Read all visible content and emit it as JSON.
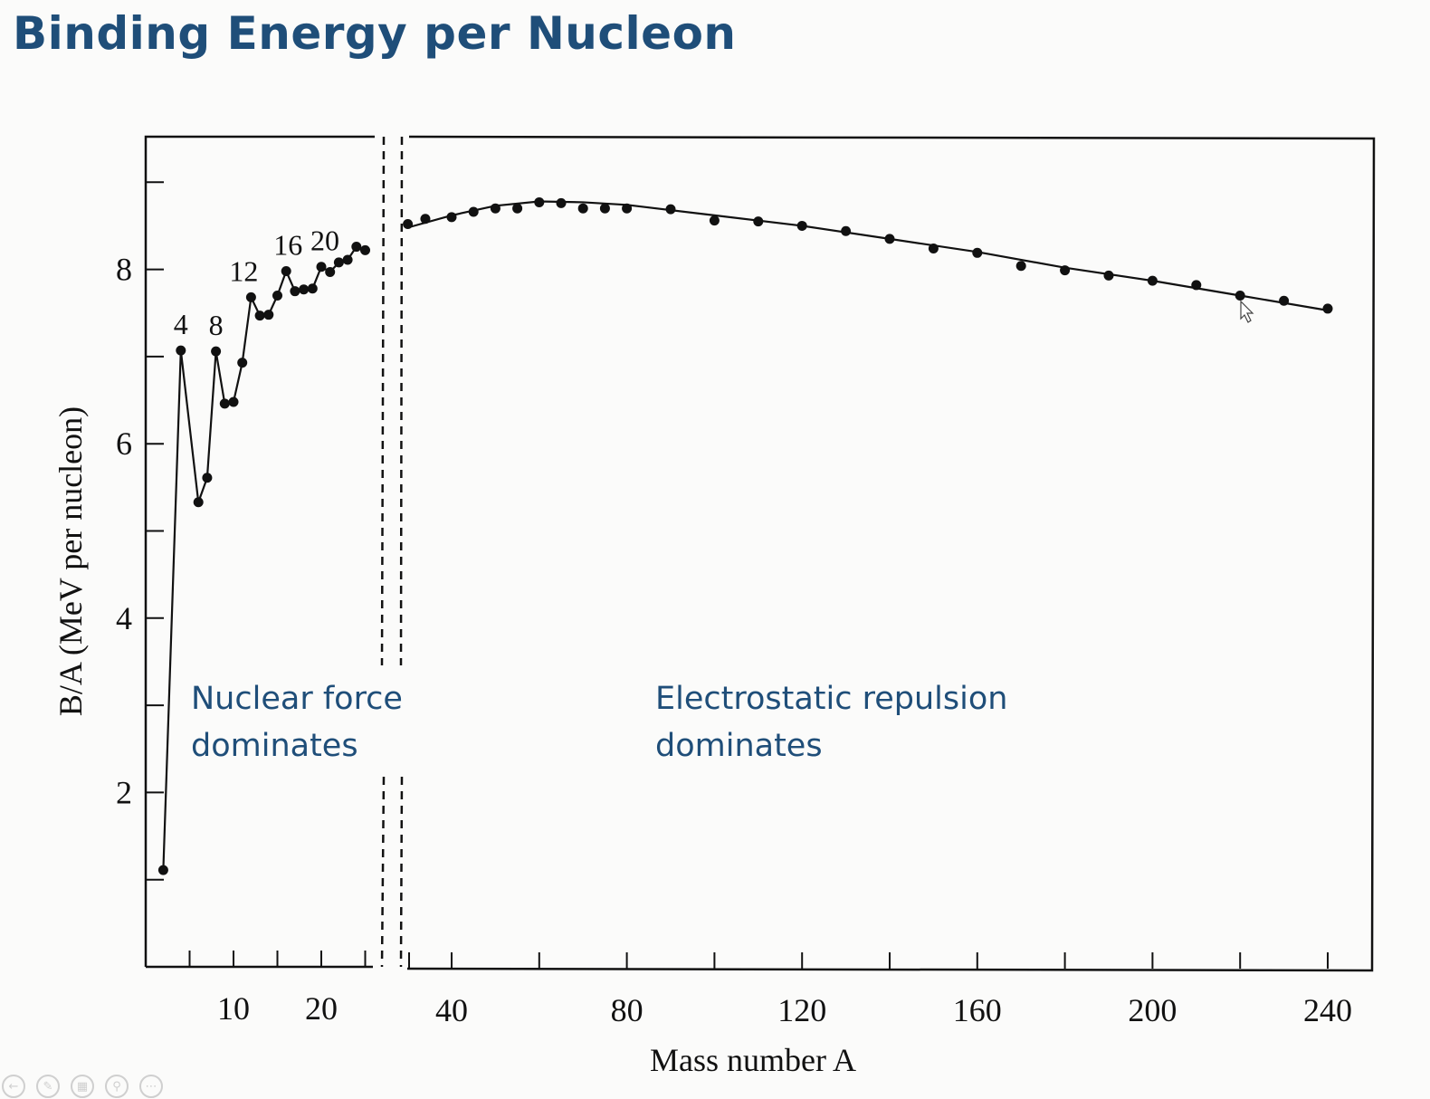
{
  "slide": {
    "title": "Binding Energy per Nucleon"
  },
  "annotations": {
    "left_region_line1": "Nuclear force",
    "left_region_line2": "dominates",
    "right_region_line1": "Electrostatic repulsion",
    "right_region_line2": "dominates"
  },
  "toolbar": {
    "icons": [
      "back-icon",
      "pen-icon",
      "slides-icon",
      "zoom-icon",
      "more-icon"
    ]
  },
  "colors": {
    "title": "#1f4e79",
    "annotation": "#1f4e79",
    "data": "#111111"
  },
  "chart_data": {
    "type": "line",
    "title": "",
    "xlabel": "Mass number A",
    "ylabel": "B/A (MeV per nucleon)",
    "x_axis_broken": true,
    "x_axis_segments": [
      {
        "range": [
          1,
          26
        ],
        "tick_values": [
          10,
          20
        ],
        "tick_labels": [
          "10",
          "20"
        ]
      },
      {
        "range": [
          30,
          244
        ],
        "tick_values": [
          40,
          80,
          120,
          160,
          200,
          240
        ],
        "tick_labels": [
          "40",
          "80",
          "120",
          "160",
          "200",
          "240"
        ]
      }
    ],
    "y_ticks": [
      2,
      4,
      6,
      8
    ],
    "ylim": [
      0,
      9.7
    ],
    "grid": false,
    "point_labels": [
      {
        "text": "4",
        "x": 4
      },
      {
        "text": "8",
        "x": 8
      },
      {
        "text": "12",
        "x": 12
      },
      {
        "text": "16",
        "x": 16
      },
      {
        "text": "20",
        "x": 20
      }
    ],
    "light_series": {
      "connected": true,
      "points": [
        {
          "x": 2,
          "y": 1.11
        },
        {
          "x": 4,
          "y": 7.07
        },
        {
          "x": 6,
          "y": 5.33
        },
        {
          "x": 7,
          "y": 5.61
        },
        {
          "x": 8,
          "y": 7.06
        },
        {
          "x": 9,
          "y": 6.46
        },
        {
          "x": 10,
          "y": 6.48
        },
        {
          "x": 11,
          "y": 6.93
        },
        {
          "x": 12,
          "y": 7.68
        },
        {
          "x": 13,
          "y": 7.47
        },
        {
          "x": 14,
          "y": 7.48
        },
        {
          "x": 15,
          "y": 7.7
        },
        {
          "x": 16,
          "y": 7.98
        },
        {
          "x": 17,
          "y": 7.75
        },
        {
          "x": 18,
          "y": 7.77
        },
        {
          "x": 19,
          "y": 7.78
        },
        {
          "x": 20,
          "y": 8.03
        },
        {
          "x": 21,
          "y": 7.97
        },
        {
          "x": 22,
          "y": 8.08
        },
        {
          "x": 23,
          "y": 8.11
        },
        {
          "x": 24,
          "y": 8.26
        },
        {
          "x": 25,
          "y": 8.22
        }
      ]
    },
    "heavy_series": {
      "points": [
        {
          "x": 30,
          "y": 8.52
        },
        {
          "x": 34,
          "y": 8.58
        },
        {
          "x": 40,
          "y": 8.6
        },
        {
          "x": 45,
          "y": 8.66
        },
        {
          "x": 50,
          "y": 8.7
        },
        {
          "x": 55,
          "y": 8.7
        },
        {
          "x": 60,
          "y": 8.77
        },
        {
          "x": 65,
          "y": 8.76
        },
        {
          "x": 70,
          "y": 8.7
        },
        {
          "x": 75,
          "y": 8.7
        },
        {
          "x": 80,
          "y": 8.7
        },
        {
          "x": 90,
          "y": 8.69
        },
        {
          "x": 100,
          "y": 8.56
        },
        {
          "x": 110,
          "y": 8.55
        },
        {
          "x": 120,
          "y": 8.5
        },
        {
          "x": 130,
          "y": 8.44
        },
        {
          "x": 140,
          "y": 8.35
        },
        {
          "x": 150,
          "y": 8.24
        },
        {
          "x": 160,
          "y": 8.19
        },
        {
          "x": 170,
          "y": 8.04
        },
        {
          "x": 180,
          "y": 7.99
        },
        {
          "x": 190,
          "y": 7.93
        },
        {
          "x": 200,
          "y": 7.87
        },
        {
          "x": 210,
          "y": 7.82
        },
        {
          "x": 220,
          "y": 7.7
        },
        {
          "x": 230,
          "y": 7.64
        },
        {
          "x": 240,
          "y": 7.55
        }
      ],
      "fit_curve": [
        {
          "x": 30,
          "y": 8.48
        },
        {
          "x": 40,
          "y": 8.62
        },
        {
          "x": 50,
          "y": 8.73
        },
        {
          "x": 60,
          "y": 8.78
        },
        {
          "x": 70,
          "y": 8.77
        },
        {
          "x": 80,
          "y": 8.74
        },
        {
          "x": 100,
          "y": 8.62
        },
        {
          "x": 120,
          "y": 8.5
        },
        {
          "x": 140,
          "y": 8.35
        },
        {
          "x": 160,
          "y": 8.2
        },
        {
          "x": 180,
          "y": 8.02
        },
        {
          "x": 200,
          "y": 7.87
        },
        {
          "x": 220,
          "y": 7.7
        },
        {
          "x": 240,
          "y": 7.53
        }
      ]
    }
  }
}
